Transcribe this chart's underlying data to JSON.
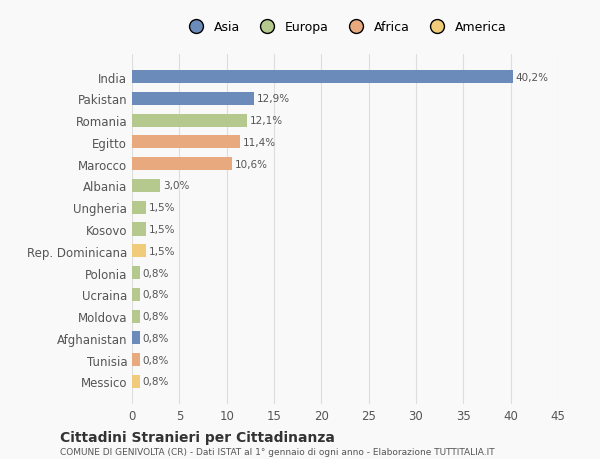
{
  "countries": [
    "India",
    "Pakistan",
    "Romania",
    "Egitto",
    "Marocco",
    "Albania",
    "Ungheria",
    "Kosovo",
    "Rep. Dominicana",
    "Polonia",
    "Ucraina",
    "Moldova",
    "Afghanistan",
    "Tunisia",
    "Messico"
  ],
  "values": [
    40.2,
    12.9,
    12.1,
    11.4,
    10.6,
    3.0,
    1.5,
    1.5,
    1.5,
    0.8,
    0.8,
    0.8,
    0.8,
    0.8,
    0.8
  ],
  "labels": [
    "40,2%",
    "12,9%",
    "12,1%",
    "11,4%",
    "10,6%",
    "3,0%",
    "1,5%",
    "1,5%",
    "1,5%",
    "0,8%",
    "0,8%",
    "0,8%",
    "0,8%",
    "0,8%",
    "0,8%"
  ],
  "colors": [
    "#6b8cba",
    "#6b8cba",
    "#b5c98e",
    "#e8a97e",
    "#e8a97e",
    "#b5c98e",
    "#b5c98e",
    "#b5c98e",
    "#f0cb7a",
    "#b5c98e",
    "#b5c98e",
    "#b5c98e",
    "#6b8cba",
    "#e8a97e",
    "#f0cb7a"
  ],
  "legend_labels": [
    "Asia",
    "Europa",
    "Africa",
    "America"
  ],
  "legend_colors": [
    "#6b8cba",
    "#b5c98e",
    "#e8a97e",
    "#f0cb7a"
  ],
  "xlim": [
    0,
    45
  ],
  "xticks": [
    0,
    5,
    10,
    15,
    20,
    25,
    30,
    35,
    40,
    45
  ],
  "title": "Cittadini Stranieri per Cittadinanza",
  "subtitle": "COMUNE DI GENIVOLTA (CR) - Dati ISTAT al 1° gennaio di ogni anno - Elaborazione TUTTITALIA.IT",
  "background_color": "#f9f9f9",
  "grid_color": "#dddddd"
}
